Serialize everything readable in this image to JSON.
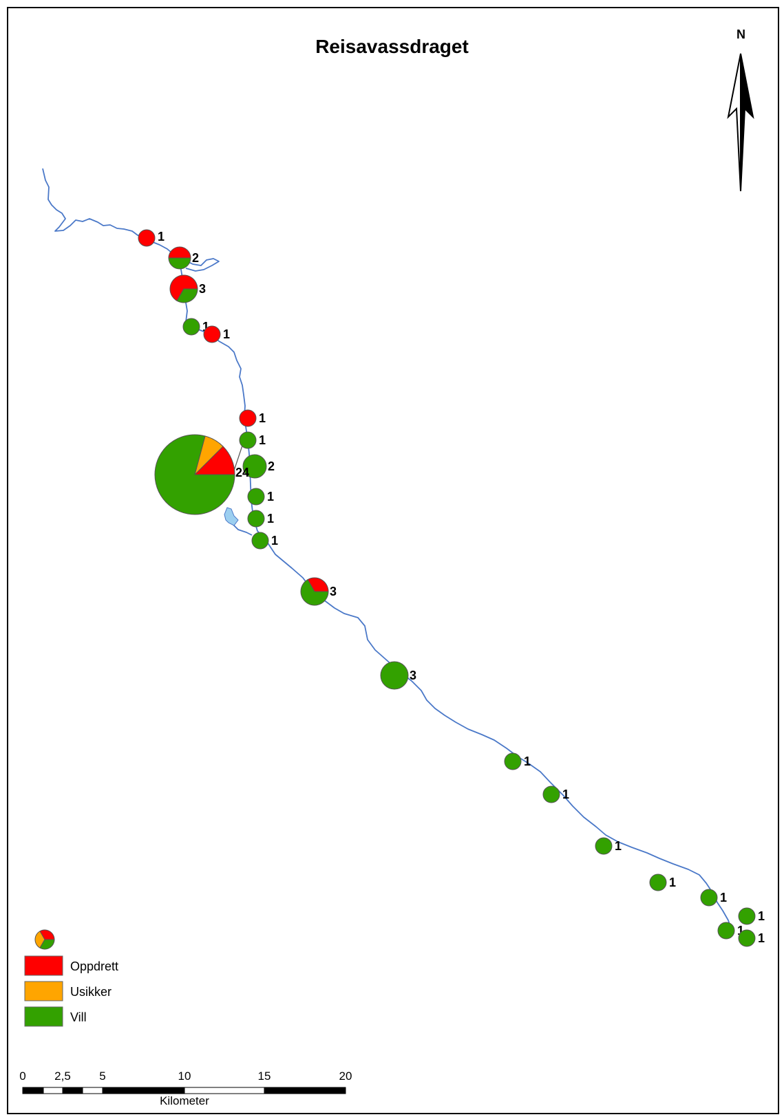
{
  "map": {
    "title": "Reisavassdraget",
    "north_label": "N",
    "colors": {
      "river": "#4a78c8",
      "lake": "#9ccff0",
      "oppdrett": "#ff0000",
      "usikker": "#ffa500",
      "vill": "#33a100"
    },
    "sites": [
      {
        "count": "1",
        "shares": {
          "oppdrett": 1,
          "usikker": 0,
          "vill": 0
        }
      },
      {
        "count": "2",
        "shares": {
          "oppdrett": 1,
          "usikker": 0,
          "vill": 1
        }
      },
      {
        "count": "3",
        "shares": {
          "oppdrett": 2,
          "usikker": 0,
          "vill": 1
        }
      },
      {
        "count": "1",
        "shares": {
          "oppdrett": 0,
          "usikker": 0,
          "vill": 1
        }
      },
      {
        "count": "1",
        "shares": {
          "oppdrett": 1,
          "usikker": 0,
          "vill": 0
        }
      },
      {
        "count": "1",
        "shares": {
          "oppdrett": 1,
          "usikker": 0,
          "vill": 0
        }
      },
      {
        "count": "1",
        "shares": {
          "oppdrett": 0,
          "usikker": 0,
          "vill": 1
        }
      },
      {
        "count": "2",
        "shares": {
          "oppdrett": 0,
          "usikker": 0,
          "vill": 2
        }
      },
      {
        "count": "24",
        "shares": {
          "oppdrett": 3,
          "usikker": 2,
          "vill": 19
        }
      },
      {
        "count": "1",
        "shares": {
          "oppdrett": 0,
          "usikker": 0,
          "vill": 1
        }
      },
      {
        "count": "1",
        "shares": {
          "oppdrett": 0,
          "usikker": 0,
          "vill": 1
        }
      },
      {
        "count": "1",
        "shares": {
          "oppdrett": 0,
          "usikker": 0,
          "vill": 1
        }
      },
      {
        "count": "3",
        "shares": {
          "oppdrett": 1,
          "usikker": 0,
          "vill": 2
        }
      },
      {
        "count": "3",
        "shares": {
          "oppdrett": 0,
          "usikker": 0,
          "vill": 3
        }
      },
      {
        "count": "1",
        "shares": {
          "oppdrett": 0,
          "usikker": 0,
          "vill": 1
        }
      },
      {
        "count": "1",
        "shares": {
          "oppdrett": 0,
          "usikker": 0,
          "vill": 1
        }
      },
      {
        "count": "1",
        "shares": {
          "oppdrett": 0,
          "usikker": 0,
          "vill": 1
        }
      },
      {
        "count": "1",
        "shares": {
          "oppdrett": 0,
          "usikker": 0,
          "vill": 1
        }
      },
      {
        "count": "1",
        "shares": {
          "oppdrett": 0,
          "usikker": 0,
          "vill": 1
        }
      },
      {
        "count": "1",
        "shares": {
          "oppdrett": 0,
          "usikker": 0,
          "vill": 1
        }
      },
      {
        "count": "1",
        "shares": {
          "oppdrett": 0,
          "usikker": 0,
          "vill": 1
        }
      },
      {
        "count": "1",
        "shares": {
          "oppdrett": 0,
          "usikker": 0,
          "vill": 1
        }
      }
    ]
  },
  "legend": {
    "items": [
      {
        "label": "Oppdrett",
        "color": "#ff0000"
      },
      {
        "label": "Usikker",
        "color": "#ffa500"
      },
      {
        "label": "Vill",
        "color": "#33a100"
      }
    ]
  },
  "scale_bar": {
    "ticks": [
      "0",
      "2,5",
      "5",
      "10",
      "15",
      "20"
    ],
    "unit": "Kilometer"
  }
}
